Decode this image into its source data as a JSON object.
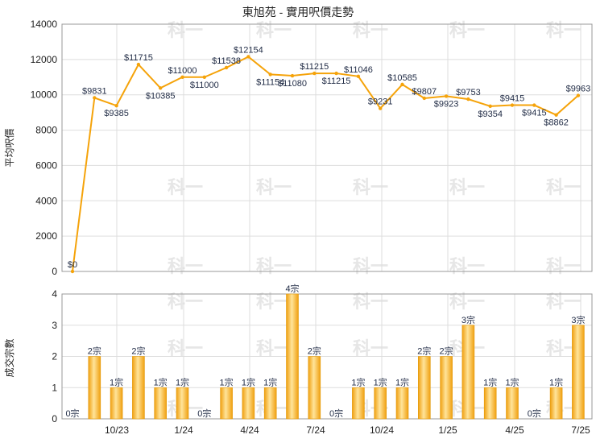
{
  "chart_data": [
    {
      "type": "line",
      "title": "東旭苑 - 實用呎價走勢",
      "ylabel": "平均呎價",
      "ylim": [
        0,
        14000
      ],
      "yticks": [
        0,
        2000,
        4000,
        6000,
        8000,
        10000,
        12000,
        14000
      ],
      "xtick_labels": [
        "10/23",
        "1/24",
        "4/24",
        "7/24",
        "10/24",
        "1/25",
        "4/25",
        "7/25"
      ],
      "grid": true,
      "line_color": "#f5a30a",
      "values": [
        0,
        9831,
        9385,
        11715,
        10385,
        11000,
        11000,
        11538,
        12154,
        11154,
        11080,
        11215,
        11215,
        11046,
        9231,
        10585,
        9807,
        9923,
        9753,
        9354,
        9415,
        9415,
        8862,
        9963
      ],
      "labels": [
        "$0",
        "$9831",
        "$9385",
        "$11715",
        "$10385",
        "$11000",
        "$11000",
        "$11538",
        "$12154",
        "$11154",
        "$11080",
        "$11215",
        "$11215",
        "$11046",
        "$9231",
        "$10585",
        "$9807",
        "$9923",
        "$9753",
        "$9354",
        "$9415",
        "$9415",
        "$8862",
        "$9963"
      ]
    },
    {
      "type": "bar",
      "ylabel": "成交宗數",
      "ylim": [
        0,
        4
      ],
      "yticks": [
        0,
        1,
        2,
        3,
        4
      ],
      "xtick_labels": [
        "10/23",
        "1/24",
        "4/24",
        "7/24",
        "10/24",
        "1/25",
        "4/25",
        "7/25"
      ],
      "grid": true,
      "bar_color": "#f5a30a",
      "values": [
        0,
        2,
        1,
        2,
        1,
        1,
        0,
        1,
        1,
        1,
        4,
        2,
        0,
        1,
        1,
        1,
        2,
        2,
        3,
        1,
        1,
        0,
        1,
        3
      ],
      "labels": [
        "0宗",
        "2宗",
        "1宗",
        "2宗",
        "1宗",
        "1宗",
        "0宗",
        "1宗",
        "1宗",
        "1宗",
        "4宗",
        "2宗",
        "0宗",
        "1宗",
        "1宗",
        "1宗",
        "2宗",
        "2宗",
        "3宗",
        "1宗",
        "1宗",
        "0宗",
        "1宗",
        "3宗"
      ]
    }
  ],
  "watermark": "科一"
}
